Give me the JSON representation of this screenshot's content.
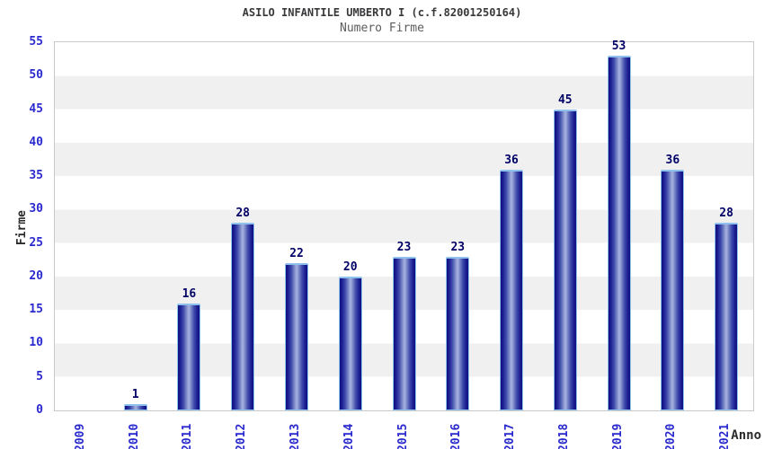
{
  "title": "ASILO INFANTILE UMBERTO I (c.f.82001250164)",
  "subtitle": "Numero Firme",
  "chart_data": {
    "type": "bar",
    "title": "ASILO INFANTILE UMBERTO I (c.f.82001250164)",
    "subtitle": "Numero Firme",
    "categories": [
      "2009",
      "2010",
      "2011",
      "2012",
      "2013",
      "2014",
      "2015",
      "2016",
      "2017",
      "2018",
      "2019",
      "2020",
      "2021"
    ],
    "values": [
      0,
      1,
      16,
      28,
      22,
      20,
      23,
      23,
      36,
      45,
      53,
      36,
      28
    ],
    "xlabel": "Anno",
    "ylabel": "Firme",
    "ylim": [
      0,
      55
    ],
    "ytick_step": 5,
    "grid": "horizontal-alternating-bands",
    "legend": "none",
    "colors": {
      "bar_edge": "#0f0f7d",
      "bar_center": "#a9b3e0",
      "bar_cap": "#8ec2ec",
      "tick_text": "#2a2ace",
      "value_label_text": "#000066",
      "axis_title_text": "#2b2b2b",
      "title_text": "#38383a",
      "subtitle_text": "#5c5c5c",
      "band_gray": "#f0f0f0",
      "band_white": "#ffffff",
      "plot_border": "#c9c9c9"
    }
  }
}
